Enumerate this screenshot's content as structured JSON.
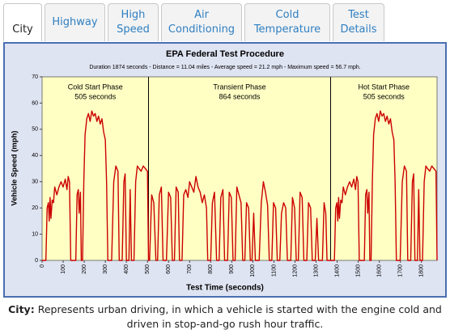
{
  "tabs": [
    {
      "label": "City",
      "active": true
    },
    {
      "label": "Highway",
      "active": false
    },
    {
      "label": "High Speed",
      "active": false
    },
    {
      "label": "Air Conditioning",
      "active": false
    },
    {
      "label": "Cold Temperature",
      "active": false
    },
    {
      "label": "Test Details",
      "active": false
    }
  ],
  "chart_data": {
    "type": "line",
    "title": "EPA Federal Test Procedure",
    "subtitle": "Duration 1874 seconds - Distance = 11.04 miles - Average speed = 21.2 mph - Maximum speed = 56.7 mph.",
    "xlabel": "Test Time (seconds)",
    "ylabel": "Vehicle Speed (mph)",
    "xlim": [
      0,
      1874
    ],
    "ylim": [
      0,
      70
    ],
    "xticks": [
      0,
      100,
      200,
      300,
      400,
      500,
      600,
      700,
      800,
      900,
      1000,
      1100,
      1200,
      1300,
      1400,
      1500,
      1600,
      1700,
      1800
    ],
    "yticks": [
      0,
      10,
      20,
      30,
      40,
      50,
      60,
      70
    ],
    "dividers": [
      505,
      1369
    ],
    "phases": [
      {
        "label": "Cold Start Phase",
        "duration": "505 seconds"
      },
      {
        "label": "Transient Phase",
        "duration": "864 seconds"
      },
      {
        "label": "Hot Start Phase",
        "duration": "505 seconds"
      }
    ],
    "x": [
      0,
      18,
      24,
      30,
      34,
      38,
      42,
      48,
      54,
      60,
      70,
      80,
      90,
      100,
      110,
      118,
      124,
      130,
      136,
      160,
      166,
      172,
      176,
      182,
      186,
      192,
      198,
      204,
      212,
      220,
      228,
      236,
      244,
      252,
      260,
      268,
      276,
      284,
      292,
      300,
      306,
      312,
      330,
      340,
      350,
      360,
      366,
      380,
      388,
      394,
      400,
      412,
      418,
      424,
      436,
      444,
      452,
      460,
      470,
      480,
      490,
      500,
      505,
      510,
      520,
      530,
      540,
      548,
      556,
      566,
      574,
      590,
      600,
      610,
      618,
      628,
      636,
      646,
      652,
      664,
      672,
      682,
      692,
      700,
      710,
      720,
      730,
      740,
      750,
      760,
      770,
      780,
      786,
      800,
      808,
      818,
      828,
      840,
      848,
      858,
      866,
      880,
      888,
      898,
      906,
      916,
      924,
      934,
      944,
      952,
      962,
      970,
      980,
      988,
      996,
      1004,
      1012,
      1030,
      1040,
      1050,
      1060,
      1070,
      1078,
      1090,
      1098,
      1108,
      1116,
      1128,
      1136,
      1146,
      1156,
      1164,
      1180,
      1188,
      1198,
      1206,
      1216,
      1224,
      1234,
      1242,
      1256,
      1264,
      1274,
      1282,
      1296,
      1304,
      1312,
      1330,
      1338,
      1346,
      1352,
      1362,
      1369,
      1387,
      1393,
      1399,
      1403,
      1407,
      1411,
      1417,
      1423,
      1429,
      1439,
      1449,
      1459,
      1469,
      1479,
      1487,
      1493,
      1499,
      1505,
      1529,
      1535,
      1541,
      1545,
      1551,
      1555,
      1561,
      1567,
      1573,
      1581,
      1589,
      1597,
      1605,
      1613,
      1621,
      1629,
      1637,
      1645,
      1653,
      1661,
      1669,
      1675,
      1681,
      1699,
      1709,
      1719,
      1729,
      1735,
      1749,
      1757,
      1763,
      1769,
      1781,
      1787,
      1793,
      1805,
      1813,
      1821,
      1829,
      1839,
      1849,
      1859,
      1869,
      1874
    ],
    "series": [
      {
        "name": "Vehicle Speed",
        "color": "#cc0000",
        "values": [
          0,
          0,
          20,
          22,
          15,
          24,
          16,
          23,
          22,
          28,
          25,
          28,
          30,
          28,
          31,
          27,
          32,
          30,
          0,
          0,
          25,
          27,
          18,
          26,
          0,
          0,
          30,
          48,
          54,
          56,
          53,
          57,
          55,
          56,
          53,
          55,
          52,
          54,
          49,
          46,
          30,
          0,
          0,
          30,
          36,
          34,
          0,
          0,
          30,
          33,
          0,
          0,
          27,
          0,
          0,
          30,
          36,
          35,
          34,
          36,
          35,
          34,
          0,
          0,
          25,
          22,
          0,
          0,
          25,
          28,
          0,
          0,
          26,
          24,
          0,
          0,
          28,
          26,
          0,
          0,
          25,
          27,
          24,
          30,
          28,
          26,
          32,
          28,
          26,
          22,
          25,
          20,
          0,
          0,
          22,
          26,
          0,
          0,
          24,
          27,
          0,
          0,
          26,
          24,
          0,
          0,
          28,
          25,
          22,
          0,
          0,
          22,
          20,
          0,
          0,
          18,
          0,
          0,
          22,
          30,
          26,
          21,
          0,
          0,
          22,
          20,
          0,
          0,
          18,
          22,
          20,
          0,
          0,
          24,
          20,
          0,
          0,
          26,
          24,
          0,
          0,
          22,
          20,
          0,
          0,
          16,
          0,
          0,
          22,
          18,
          0,
          0,
          0,
          0,
          20,
          22,
          15,
          24,
          16,
          23,
          22,
          28,
          25,
          28,
          30,
          28,
          31,
          27,
          32,
          30,
          0,
          0,
          25,
          27,
          18,
          26,
          0,
          0,
          30,
          48,
          54,
          56,
          53,
          57,
          55,
          56,
          53,
          55,
          52,
          54,
          49,
          46,
          30,
          0,
          0,
          30,
          36,
          34,
          0,
          0,
          30,
          33,
          0,
          0,
          27,
          0,
          0,
          30,
          36,
          35,
          34,
          36,
          35,
          34,
          0
        ]
      }
    ]
  },
  "caption": {
    "label": "City:",
    "text": "Represents urban driving, in which a vehicle is started with the engine cold and driven in stop-and-go rush hour traffic."
  }
}
